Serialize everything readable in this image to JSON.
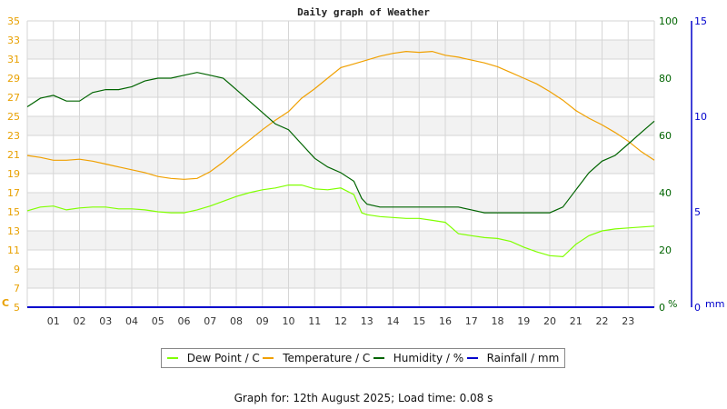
{
  "chart_data": {
    "type": "line",
    "title": "Daily graph of Weather",
    "xlabel": "",
    "x_ticks": [
      "01",
      "02",
      "03",
      "04",
      "05",
      "06",
      "07",
      "08",
      "09",
      "10",
      "11",
      "12",
      "13",
      "14",
      "15",
      "16",
      "17",
      "18",
      "19",
      "20",
      "21",
      "22",
      "23"
    ],
    "xlim": [
      0,
      24
    ],
    "axes": {
      "left": {
        "label": "C",
        "ticks": [
          5,
          7,
          9,
          11,
          13,
          15,
          17,
          19,
          21,
          23,
          25,
          27,
          29,
          31,
          33,
          35
        ],
        "range": [
          5,
          35
        ],
        "color": "#e8a000"
      },
      "right_humidity": {
        "label": "%",
        "ticks": [
          0,
          20,
          40,
          60,
          80,
          100
        ],
        "range": [
          0,
          100
        ],
        "color": "#006400"
      },
      "right_rainfall": {
        "label": "mm",
        "ticks": [
          0,
          5,
          10,
          15
        ],
        "range": [
          0,
          15
        ],
        "color": "#0000cc"
      }
    },
    "grid": true,
    "legend_position": "bottom",
    "series": [
      {
        "name": "Dew Point / C",
        "color": "#80ff00",
        "axis": "left",
        "x": [
          0,
          0.5,
          1,
          1.5,
          2,
          2.5,
          3,
          3.5,
          4,
          4.5,
          5,
          5.5,
          6,
          6.5,
          7,
          7.5,
          8,
          8.5,
          9,
          9.5,
          10,
          10.5,
          11,
          11.5,
          12,
          12.5,
          12.8,
          13,
          13.5,
          14,
          14.5,
          15,
          15.5,
          16,
          16.5,
          17,
          17.5,
          18,
          18.5,
          19,
          19.5,
          20,
          20.5,
          21,
          21.5,
          22,
          22.5,
          23,
          23.5,
          24
        ],
        "values": [
          15.1,
          15.5,
          15.6,
          15.2,
          15.4,
          15.5,
          15.5,
          15.3,
          15.3,
          15.2,
          15.0,
          14.9,
          14.9,
          15.2,
          15.6,
          16.1,
          16.6,
          17.0,
          17.3,
          17.5,
          17.8,
          17.8,
          17.4,
          17.3,
          17.5,
          16.8,
          14.9,
          14.7,
          14.5,
          14.4,
          14.3,
          14.3,
          14.1,
          13.9,
          12.7,
          12.5,
          12.3,
          12.2,
          11.9,
          11.3,
          10.8,
          10.4,
          10.3,
          11.6,
          12.5,
          13.0,
          13.2,
          13.3,
          13.4,
          13.5
        ]
      },
      {
        "name": "Temperature / C",
        "color": "#f0a000",
        "axis": "left",
        "x": [
          0,
          0.5,
          1,
          1.5,
          2,
          2.5,
          3,
          3.5,
          4,
          4.5,
          5,
          5.5,
          6,
          6.5,
          7,
          7.5,
          8,
          8.5,
          9,
          9.5,
          10,
          10.5,
          11,
          11.5,
          12,
          12.5,
          13,
          13.5,
          14,
          14.5,
          15,
          15.5,
          16,
          16.5,
          17,
          17.5,
          18,
          18.5,
          19,
          19.5,
          20,
          20.5,
          21,
          21.5,
          22,
          22.5,
          23,
          23.5,
          24
        ],
        "values": [
          20.9,
          20.7,
          20.4,
          20.4,
          20.5,
          20.3,
          20.0,
          19.7,
          19.4,
          19.1,
          18.7,
          18.5,
          18.4,
          18.5,
          19.2,
          20.2,
          21.4,
          22.5,
          23.6,
          24.6,
          25.5,
          26.9,
          27.9,
          29.0,
          30.1,
          30.5,
          30.9,
          31.3,
          31.6,
          31.8,
          31.7,
          31.8,
          31.4,
          31.2,
          30.9,
          30.6,
          30.2,
          29.6,
          29.0,
          28.4,
          27.6,
          26.7,
          25.6,
          24.8,
          24.1,
          23.3,
          22.4,
          21.3,
          20.4
        ]
      },
      {
        "name": "Humidity / %",
        "color": "#006400",
        "axis": "right_humidity",
        "x": [
          0,
          0.5,
          1,
          1.5,
          2,
          2.5,
          3,
          3.5,
          4,
          4.5,
          5,
          5.5,
          6,
          6.5,
          7,
          7.5,
          8,
          8.5,
          9,
          9.5,
          10,
          10.5,
          11,
          11.5,
          12,
          12.5,
          12.8,
          13,
          13.5,
          14,
          14.5,
          15,
          15.5,
          16,
          16.5,
          17,
          17.5,
          18,
          18.5,
          19,
          19.5,
          20,
          20.5,
          21,
          21.5,
          22,
          22.5,
          23,
          23.5,
          24
        ],
        "values": [
          70,
          73,
          74,
          72,
          72,
          75,
          76,
          76,
          77,
          79,
          80,
          80,
          81,
          82,
          81,
          80,
          76,
          72,
          68,
          64,
          62,
          57,
          52,
          49,
          47,
          44,
          38,
          36,
          35,
          35,
          35,
          35,
          35,
          35,
          35,
          34,
          33,
          33,
          33,
          33,
          33,
          33,
          35,
          41,
          47,
          51,
          53,
          57,
          61,
          65
        ]
      },
      {
        "name": "Rainfall / mm",
        "color": "#0000cc",
        "axis": "right_rainfall",
        "x": [
          0,
          24
        ],
        "values": [
          0,
          0
        ]
      }
    ]
  },
  "page": {
    "title": "Daily graph of Weather",
    "footer": "Graph for: 12th August 2025; Load time: 0.08 s",
    "legend": [
      {
        "label": "Dew Point / C",
        "color": "#80ff00"
      },
      {
        "label": "Temperature / C",
        "color": "#f0a000"
      },
      {
        "label": "Humidity / %",
        "color": "#006400"
      },
      {
        "label": "Rainfall / mm",
        "color": "#0000cc"
      }
    ]
  }
}
